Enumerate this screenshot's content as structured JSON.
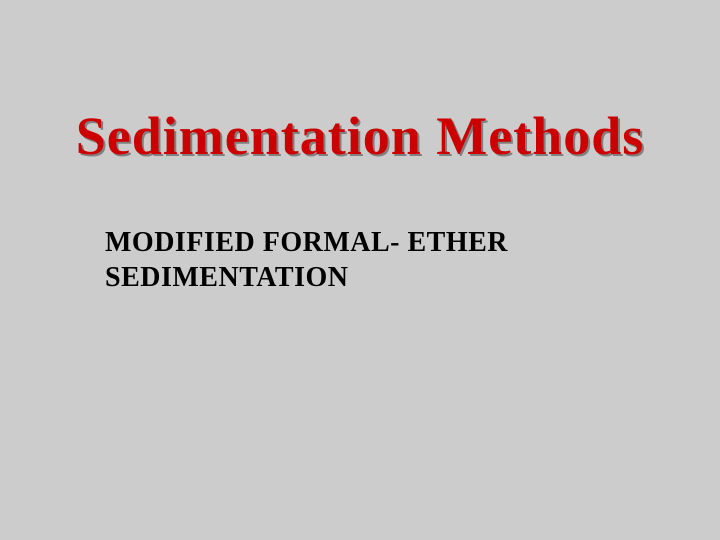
{
  "slide": {
    "title": "Sedimentation Methods",
    "subtitle_line1": "MODIFIED FORMAL- ETHER",
    "subtitle_line2": "SEDIMENTATION",
    "background_color": "#cccccc",
    "title_color": "#cc0000",
    "title_shadow_color": "#808080",
    "subtitle_color": "#000000",
    "title_fontsize": 54,
    "subtitle_fontsize": 28,
    "font_family": "Times New Roman"
  }
}
